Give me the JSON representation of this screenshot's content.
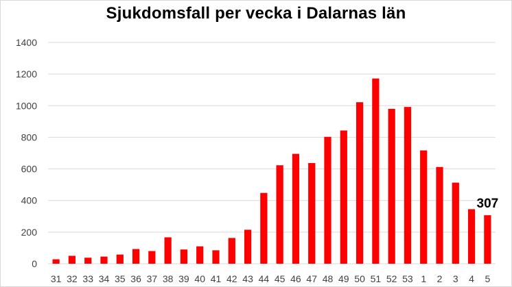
{
  "chart_data": {
    "type": "bar",
    "title": "Sjukdomsfall per vecka i Dalarnas län",
    "xlabel": "",
    "ylabel": "",
    "ylim": [
      0,
      1400
    ],
    "yticks": [
      0,
      200,
      400,
      600,
      800,
      1000,
      1200,
      1400
    ],
    "grid": true,
    "legend": "none",
    "bar_color": "#ff0000",
    "categories": [
      "31",
      "32",
      "33",
      "34",
      "35",
      "36",
      "37",
      "38",
      "39",
      "40",
      "41",
      "42",
      "43",
      "44",
      "45",
      "46",
      "47",
      "48",
      "49",
      "50",
      "51",
      "52",
      "53",
      "1",
      "2",
      "3",
      "4",
      "5"
    ],
    "values": [
      28,
      50,
      38,
      45,
      58,
      93,
      80,
      167,
      90,
      110,
      85,
      163,
      215,
      448,
      623,
      695,
      637,
      803,
      843,
      1022,
      1172,
      980,
      992,
      717,
      612,
      513,
      345,
      307
    ],
    "data_labels": [
      {
        "category": "5",
        "text": "307"
      }
    ]
  }
}
